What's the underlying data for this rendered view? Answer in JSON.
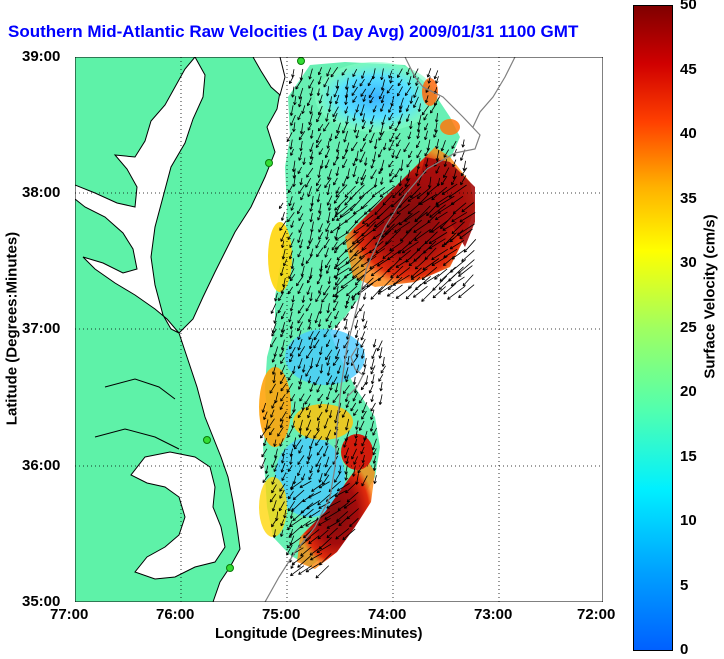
{
  "title": "Southern Mid-Atlantic Raw Velocities (1 Day Avg) 2009/01/31 1100 GMT",
  "x_axis": {
    "label": "Longitude (Degrees:Minutes)",
    "ticks": [
      "77:00",
      "76:00",
      "75:00",
      "74:00",
      "73:00",
      "72:00"
    ]
  },
  "y_axis": {
    "label": "Latitude (Degrees:Minutes)",
    "ticks": [
      "39:00",
      "38:00",
      "37:00",
      "36:00",
      "35:00"
    ]
  },
  "colorbar": {
    "label": "Surface Velocity (cm/s)",
    "ticks": [
      "50",
      "45",
      "40",
      "35",
      "30",
      "25",
      "20",
      "15",
      "10",
      "5",
      "0"
    ],
    "range": [
      0,
      50
    ],
    "colormap": "jet"
  },
  "map": {
    "land_color": "#5ef2a8",
    "coast_line_color": "#000000",
    "contour_color": "#808080",
    "station_color": "#2ecc40",
    "lon_range": [
      -77,
      -72
    ],
    "lat_range": [
      35,
      39
    ],
    "grid": "dotted"
  }
}
